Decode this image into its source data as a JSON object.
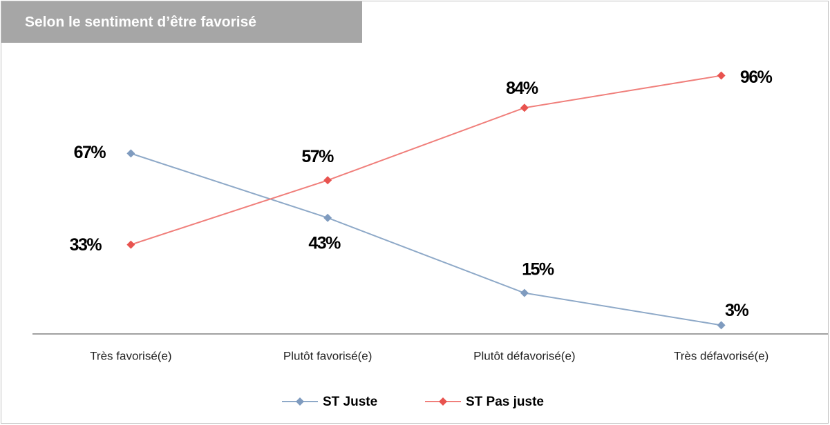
{
  "chart_data": {
    "type": "line",
    "title": "Selon le sentiment d’être favorisé",
    "categories": [
      "Très favorisé(e)",
      "Plutôt favorisé(e)",
      "Plutôt défavorisé(e)",
      "Très défavorisé(e)"
    ],
    "series": [
      {
        "name": "ST Juste",
        "color": "#8ea9c8",
        "values": [
          67,
          43,
          15,
          3
        ],
        "value_labels": [
          "67%",
          "43%",
          "15%",
          "3%"
        ]
      },
      {
        "name": "ST Pas juste",
        "color": "#f07f7b",
        "values": [
          33,
          57,
          84,
          96
        ],
        "value_labels": [
          "33%",
          "57%",
          "84%",
          "96%"
        ]
      }
    ],
    "ylim": [
      0,
      100
    ],
    "legend": "bottom"
  }
}
